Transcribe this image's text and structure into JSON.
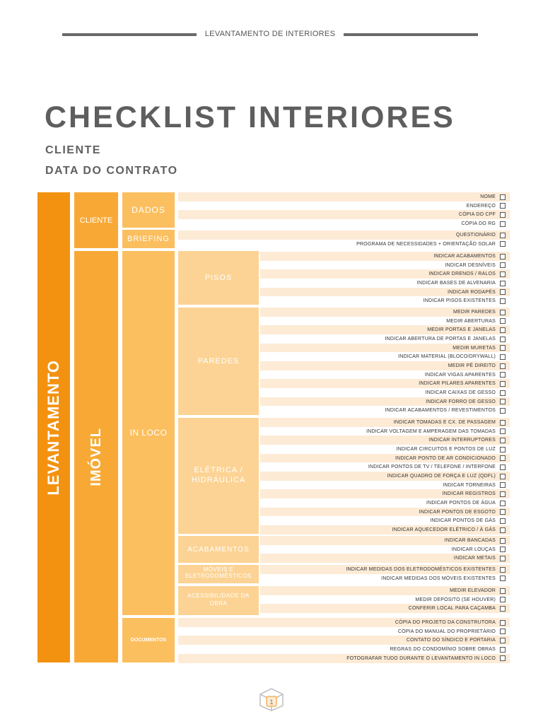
{
  "header": {
    "label": "LEVANTAMENTO DE INTERIORES"
  },
  "title": "CHECKLIST INTERIORES",
  "subtitles": {
    "client": "CLIENTE",
    "contract_date": "DATA DO CONTRATO"
  },
  "labels": {
    "levantamento": "LEVANTAMENTO",
    "imovel": "IMÓVEL",
    "cliente": "CLIENTE",
    "dados": "DADOS",
    "briefing": "BRIEFING",
    "in_loco": "IN LOCO",
    "documentos": "DOCUMENTOS",
    "pisos": "PISOS",
    "paredes": "PAREDES",
    "eletrica_1": "ELÉTRICA /",
    "eletrica_2": "HIDRÁULICA",
    "acabamentos": "ACABAMENTOS",
    "moveis_1": "MÓVEIS E",
    "moveis_2": "ELETRODOMÉSTICOS",
    "acess_1": "ACESSIBILIDADE DA",
    "acess_2": "OBRA"
  },
  "groups": [
    {
      "id": "dados",
      "items": [
        "NOME",
        "ENDEREÇO",
        "CÓPIA DO CPF",
        "CÓPIA DO RG"
      ]
    },
    {
      "id": "briefing",
      "items": [
        "QUESTIONÁRIO",
        "PROGRAMA DE NECESSIDADES + ORIENTAÇÃO SOLAR"
      ]
    },
    {
      "id": "pisos",
      "items": [
        "INDICAR ACABAMENTOS",
        "INDICAR DESNÍVEIS",
        "INDICAR DRENOS / RALOS",
        "INDICAR BASES DE ALVENARIA",
        "INDICAR RODAPÉS",
        "INDICAR PISOS EXISTENTES"
      ]
    },
    {
      "id": "paredes",
      "items": [
        "MEDIR PAREDES",
        "MEDIR ABERTURAS",
        "MEDIR PORTAS E JANELAS",
        "INDICAR ABERTURA DE PORTAS E JANELAS",
        "MEDIR MURETAS",
        "INDICAR MATERIAL (BLOCO/DRYWALL)",
        "MEDIR PÉ DIREITO",
        "INDICAR VIGAS APARENTES",
        "INDICAR PILARES APARENTES",
        "INDICAR CAIXAS DE GESSO",
        "INDICAR FORRO DE GESSO",
        "INDICAR ACABAMENTOS / REVESTIMENTOS"
      ]
    },
    {
      "id": "eletrica",
      "items": [
        "INDICAR TOMADAS E CX. DE PASSAGEM",
        "INDICAR VOLTAGEM E AMPERAGEM DAS TOMADAS",
        "INDICAR INTERRUPTORES",
        "INDICAR CIRCUITOS E PONTOS DE LUZ",
        "INDICAR PONTO DE AR CONDICIONADO",
        "INDICAR PONTOS DE TV / TELEFONE / INTERFONE",
        "INDICAR QUADRO DE FORÇA E LUZ (QDFL)",
        "INDICAR TORNEIRAS",
        "INDICAR REGISTROS",
        "INDICAR PONTOS DE ÁGUA",
        "INDICAR PONTOS DE ESGOTO",
        "INDICAR PONTOS DE GÁS",
        "INDICAR AQUECEDOR ELÉTRICO / À GÁS"
      ]
    },
    {
      "id": "acabamentos",
      "items": [
        "INDICAR BANCADAS",
        "INDICAR LOUÇAS",
        "INDICAR METAIS"
      ]
    },
    {
      "id": "moveis",
      "items": [
        "INDICAR MEDIDAS DOS ELETRODOMÉSTICOS EXISTENTES",
        "INDICAR MEDIDAS DOS MÓVEIS EXISTENTES"
      ]
    },
    {
      "id": "acessibilidade",
      "items": [
        "MEDIR ELEVADOR",
        "MEDIR DEPÓSITO (SE HOUVER)",
        "CONFERIR LOCAL PARA CAÇAMBA"
      ]
    },
    {
      "id": "documentos",
      "items": [
        "CÓPIA DO PROJETO DA CONSTRUTORA",
        "CÓPIA DO MANUAL DO PROPRIETÁRIO",
        "CONTATO DO SÍNDICO E PORTARIA",
        "REGRAS DO CONDOMÍNIO SOBRE OBRAS",
        "FOTOGRAFAR TUDO DURANTE O LEVANTAMENTO IN LOCO"
      ]
    }
  ],
  "footer": {
    "page_number": "1"
  },
  "colors": {
    "dark_orange": "#f39211",
    "mid_orange": "#f8a935",
    "light_orange": "#fbbf5f",
    "pale_orange": "#fcd394",
    "row_tint": "#fdebd6",
    "text_gray": "#5e5e5e"
  }
}
